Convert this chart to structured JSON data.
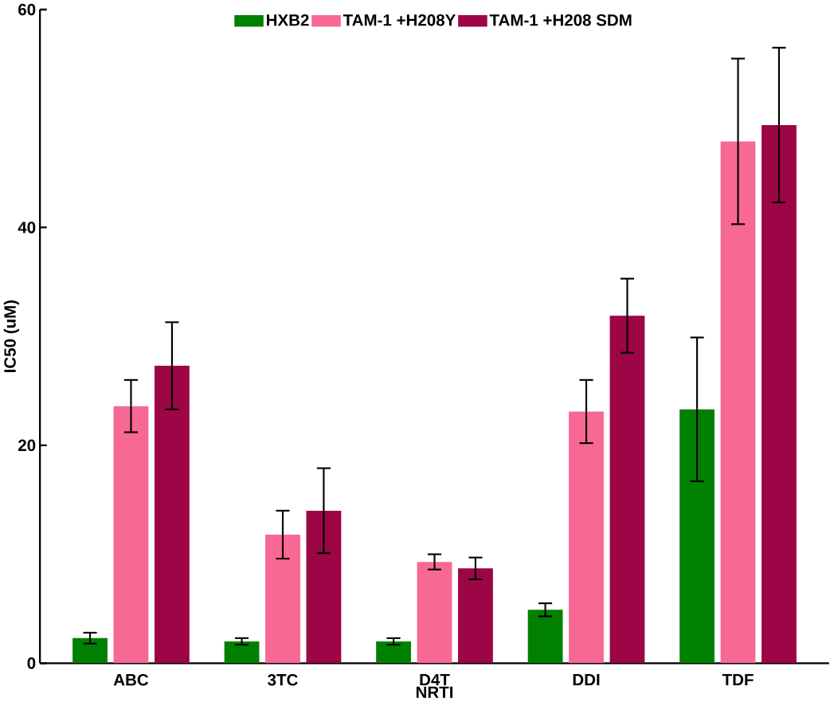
{
  "chart_data": {
    "type": "bar",
    "xlabel": "NRTI",
    "ylabel": "IC50 (uM)",
    "categories": [
      "ABC",
      "3TC",
      "D4T",
      "DDI",
      "TDF"
    ],
    "series": [
      {
        "name": "HXB2",
        "color": "#008000",
        "values": [
          2.3,
          2.0,
          2.0,
          4.9,
          23.3
        ],
        "errors": [
          0.5,
          0.3,
          0.3,
          0.6,
          6.6
        ]
      },
      {
        "name": "TAM-1 +H208Y",
        "color": "#f76895",
        "values": [
          23.6,
          11.8,
          9.3,
          23.1,
          47.9
        ],
        "errors": [
          2.4,
          2.2,
          0.7,
          2.9,
          7.6
        ]
      },
      {
        "name": "TAM-1 +H208 SDM",
        "color": "#9c0546",
        "values": [
          27.3,
          14.0,
          8.7,
          31.9,
          49.4
        ],
        "errors": [
          4.0,
          3.9,
          1.0,
          3.4,
          7.1
        ]
      }
    ],
    "ylim": [
      0,
      60
    ],
    "yticks": [
      0,
      20,
      40,
      60
    ],
    "grid": false,
    "legend": "top"
  }
}
